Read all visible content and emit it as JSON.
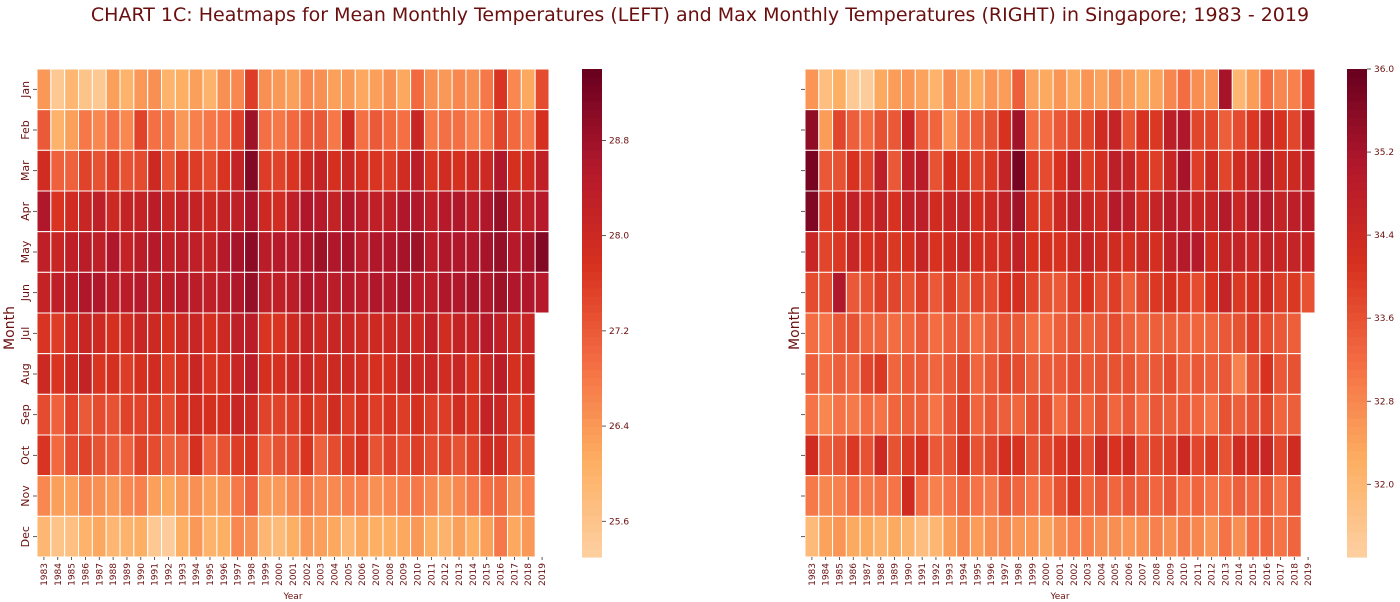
{
  "title": "CHART 1C: Heatmaps for Mean Monthly Temperatures (LEFT) and Max Monthly Temperatures (RIGHT) in Singapore; 1983 - 2019",
  "colors": {
    "scale": [
      "#fdd0a2",
      "#fdae61",
      "#f46d43",
      "#d7301f",
      "#b2182b",
      "#67001f"
    ],
    "grid": "#ffffff",
    "text": "#6a0f0f"
  },
  "chart_data": [
    {
      "type": "heatmap",
      "xlabel": "Year",
      "ylabel": "Month",
      "x": [
        "1983",
        "1984",
        "1985",
        "1986",
        "1987",
        "1988",
        "1989",
        "1990",
        "1991",
        "1992",
        "1993",
        "1994",
        "1995",
        "1996",
        "1997",
        "1998",
        "1999",
        "2000",
        "2001",
        "2002",
        "2003",
        "2004",
        "2005",
        "2006",
        "2007",
        "2008",
        "2009",
        "2010",
        "2011",
        "2012",
        "2013",
        "2014",
        "2015",
        "2016",
        "2017",
        "2018",
        "2019"
      ],
      "y": [
        "Jan",
        "Feb",
        "Mar",
        "Apr",
        "May",
        "Jun",
        "Jul",
        "Aug",
        "Sep",
        "Oct",
        "Nov",
        "Dec"
      ],
      "vmin": 25.3,
      "vmax": 29.4,
      "colorbar_ticks": [
        25.6,
        26.4,
        27.2,
        28.0,
        28.8
      ],
      "values": [
        [
          26.4,
          25.5,
          25.9,
          25.6,
          25.5,
          26.3,
          26.0,
          26.4,
          26.5,
          26.0,
          26.1,
          26.3,
          26.0,
          26.5,
          26.6,
          27.6,
          26.5,
          26.4,
          26.3,
          26.6,
          26.5,
          26.3,
          26.4,
          26.2,
          26.3,
          26.5,
          26.2,
          27.0,
          26.5,
          26.4,
          26.6,
          26.5,
          26.8,
          27.7,
          26.6,
          26.2,
          27.4
        ],
        [
          27.2,
          26.0,
          26.3,
          26.8,
          26.6,
          26.9,
          26.6,
          27.5,
          26.9,
          26.8,
          26.4,
          26.7,
          26.8,
          26.9,
          27.5,
          28.8,
          26.9,
          26.8,
          27.0,
          27.2,
          27.2,
          26.8,
          28.0,
          26.9,
          27.2,
          27.0,
          26.9,
          28.1,
          26.8,
          26.9,
          26.9,
          26.7,
          26.8,
          27.5,
          27.0,
          26.8,
          27.8
        ],
        [
          27.9,
          27.1,
          27.1,
          27.5,
          27.3,
          27.6,
          27.3,
          27.4,
          28.0,
          27.3,
          27.7,
          27.6,
          27.4,
          27.7,
          28.2,
          29.1,
          27.6,
          27.5,
          27.7,
          28.0,
          28.2,
          27.8,
          28.1,
          27.8,
          27.7,
          27.6,
          27.9,
          28.4,
          27.7,
          27.9,
          27.8,
          28.0,
          28.0,
          28.6,
          27.8,
          27.9,
          28.3
        ],
        [
          28.6,
          27.7,
          27.9,
          28.1,
          28.3,
          28.0,
          28.2,
          28.2,
          28.4,
          28.1,
          28.3,
          28.2,
          28.0,
          28.2,
          28.3,
          28.7,
          28.0,
          27.9,
          28.3,
          28.6,
          28.5,
          28.2,
          28.6,
          28.4,
          28.3,
          28.3,
          28.6,
          28.6,
          28.3,
          28.5,
          28.6,
          28.4,
          28.6,
          28.9,
          28.3,
          28.3,
          28.5
        ],
        [
          28.3,
          28.1,
          28.3,
          28.4,
          28.3,
          28.6,
          28.2,
          28.4,
          28.5,
          28.3,
          28.4,
          28.3,
          28.2,
          28.5,
          28.7,
          29.0,
          28.4,
          28.5,
          28.5,
          28.6,
          28.8,
          28.6,
          28.7,
          28.4,
          28.6,
          28.6,
          28.7,
          28.8,
          28.4,
          28.6,
          28.6,
          28.6,
          28.7,
          28.9,
          28.5,
          28.7,
          29.1
        ],
        [
          28.2,
          28.3,
          28.4,
          28.6,
          28.6,
          28.4,
          28.4,
          28.5,
          28.3,
          28.4,
          28.5,
          28.4,
          28.3,
          28.4,
          28.6,
          28.9,
          28.3,
          28.3,
          28.4,
          28.6,
          28.5,
          28.4,
          28.5,
          28.4,
          28.6,
          28.5,
          28.7,
          28.4,
          28.4,
          28.6,
          28.6,
          28.7,
          28.6,
          28.8,
          28.6,
          28.6,
          28.5
        ],
        [
          27.7,
          27.6,
          27.9,
          28.1,
          28.0,
          27.8,
          27.9,
          28.1,
          28.0,
          27.8,
          28.0,
          28.1,
          27.8,
          28.0,
          28.3,
          28.4,
          27.7,
          27.7,
          28.0,
          28.2,
          28.0,
          28.1,
          28.1,
          28.0,
          28.0,
          28.0,
          28.1,
          28.0,
          28.3,
          27.9,
          28.2,
          28.2,
          28.5,
          28.3,
          28.0,
          28.1,
          null
        ],
        [
          28.0,
          27.7,
          28.0,
          28.2,
          27.7,
          27.8,
          27.6,
          27.8,
          27.9,
          27.6,
          27.8,
          28.1,
          27.7,
          27.8,
          28.1,
          28.4,
          27.8,
          27.8,
          28.0,
          28.1,
          27.9,
          28.0,
          28.0,
          27.9,
          27.8,
          27.8,
          28.1,
          28.0,
          28.1,
          27.9,
          28.1,
          27.8,
          28.1,
          28.4,
          27.8,
          28.0,
          null
        ],
        [
          27.4,
          27.1,
          27.5,
          27.2,
          27.4,
          27.3,
          27.5,
          27.5,
          27.6,
          27.4,
          27.7,
          27.9,
          27.8,
          27.8,
          28.1,
          28.0,
          27.5,
          27.5,
          27.6,
          27.8,
          27.6,
          27.9,
          27.6,
          27.8,
          27.6,
          27.7,
          27.6,
          27.8,
          27.6,
          27.6,
          27.9,
          27.7,
          28.2,
          28.1,
          27.6,
          27.7,
          null
        ],
        [
          27.7,
          27.0,
          27.4,
          27.5,
          27.3,
          27.2,
          27.1,
          27.5,
          27.4,
          27.1,
          27.2,
          27.8,
          27.1,
          27.3,
          27.6,
          27.7,
          27.1,
          27.3,
          27.4,
          27.7,
          27.1,
          27.4,
          27.6,
          27.8,
          27.3,
          27.5,
          27.4,
          27.6,
          27.4,
          27.5,
          27.3,
          27.5,
          27.9,
          27.9,
          27.4,
          27.3,
          null
        ],
        [
          26.6,
          26.3,
          26.3,
          26.6,
          26.5,
          26.4,
          26.6,
          26.7,
          26.3,
          26.2,
          26.4,
          26.5,
          26.3,
          26.4,
          26.8,
          27.1,
          26.4,
          26.4,
          26.6,
          26.8,
          26.6,
          26.6,
          26.7,
          26.7,
          26.5,
          26.6,
          26.7,
          26.8,
          26.6,
          26.4,
          26.6,
          26.8,
          26.9,
          27.0,
          26.5,
          26.7,
          null
        ],
        [
          25.9,
          25.6,
          25.7,
          26.0,
          26.2,
          25.9,
          26.0,
          26.1,
          25.5,
          25.4,
          26.1,
          26.4,
          26.0,
          26.1,
          26.6,
          26.5,
          25.9,
          25.8,
          26.1,
          26.4,
          26.3,
          26.2,
          25.9,
          26.2,
          26.1,
          26.1,
          26.2,
          26.4,
          26.1,
          26.0,
          26.3,
          26.1,
          26.3,
          26.8,
          26.2,
          26.4,
          null
        ]
      ]
    },
    {
      "type": "heatmap",
      "xlabel": "Year",
      "ylabel": "Month",
      "x": [
        "1983",
        "1984",
        "1985",
        "1986",
        "1987",
        "1988",
        "1989",
        "1990",
        "1991",
        "1992",
        "1993",
        "1994",
        "1995",
        "1996",
        "1997",
        "1998",
        "1999",
        "2000",
        "2001",
        "2002",
        "2003",
        "2004",
        "2005",
        "2006",
        "2007",
        "2008",
        "2009",
        "2010",
        "2011",
        "2012",
        "2013",
        "2014",
        "2015",
        "2016",
        "2017",
        "2018",
        "2019"
      ],
      "y": [
        "Jan",
        "Feb",
        "Mar",
        "Apr",
        "May",
        "Jun",
        "Jul",
        "Aug",
        "Sep",
        "Oct",
        "Nov",
        "Dec"
      ],
      "vmin": 31.3,
      "vmax": 36.0,
      "colorbar_ticks": [
        32.0,
        32.8,
        33.6,
        34.4,
        35.2,
        36.0
      ],
      "values": [
        [
          32.6,
          31.8,
          32.2,
          31.5,
          31.4,
          32.3,
          32.5,
          32.6,
          32.4,
          32.1,
          32.7,
          32.4,
          32.3,
          32.6,
          32.5,
          33.4,
          32.4,
          32.3,
          32.6,
          32.3,
          32.6,
          32.4,
          32.7,
          32.5,
          32.3,
          32.4,
          32.8,
          33.2,
          32.7,
          32.6,
          35.2,
          32.0,
          32.5,
          33.2,
          32.8,
          32.9,
          33.6
        ],
        [
          35.5,
          32.5,
          33.8,
          33.4,
          33.2,
          33.6,
          33.5,
          34.5,
          33.5,
          33.3,
          32.6,
          33.2,
          33.4,
          33.6,
          34.1,
          35.3,
          33.2,
          33.2,
          33.5,
          33.7,
          33.8,
          34.3,
          34.6,
          33.6,
          34.1,
          34.0,
          34.8,
          35.1,
          33.8,
          33.8,
          33.4,
          33.7,
          34.0,
          34.6,
          34.1,
          33.8,
          34.8
        ],
        [
          35.8,
          33.5,
          33.6,
          34.1,
          33.8,
          34.8,
          33.5,
          34.7,
          34.9,
          33.6,
          34.2,
          34.0,
          33.8,
          34.0,
          34.6,
          35.8,
          33.9,
          33.7,
          34.1,
          34.8,
          33.9,
          34.2,
          34.8,
          34.6,
          34.1,
          33.9,
          34.5,
          35.2,
          33.9,
          34.4,
          33.8,
          34.3,
          34.6,
          35.0,
          34.3,
          34.4,
          34.8
        ],
        [
          35.7,
          33.9,
          34.2,
          34.7,
          34.3,
          34.7,
          34.1,
          34.7,
          34.8,
          34.3,
          34.5,
          34.6,
          34.2,
          34.4,
          34.7,
          35.3,
          34.0,
          33.9,
          34.4,
          34.8,
          34.5,
          34.3,
          35.0,
          34.8,
          34.3,
          34.6,
          34.9,
          34.9,
          34.5,
          34.6,
          35.0,
          34.5,
          35.0,
          35.0,
          34.6,
          34.8,
          34.9
        ],
        [
          34.5,
          33.8,
          34.0,
          34.5,
          34.1,
          34.3,
          34.0,
          34.2,
          34.6,
          34.1,
          34.3,
          34.5,
          34.2,
          34.2,
          34.3,
          34.7,
          34.1,
          34.2,
          34.1,
          34.4,
          34.6,
          34.3,
          34.3,
          34.2,
          34.4,
          34.2,
          34.7,
          35.0,
          35.0,
          34.3,
          34.6,
          34.6,
          34.5,
          34.7,
          34.5,
          34.6,
          34.6
        ],
        [
          33.7,
          33.6,
          35.1,
          33.5,
          33.6,
          33.9,
          33.8,
          33.6,
          33.9,
          33.5,
          33.9,
          33.6,
          33.8,
          33.7,
          34.1,
          34.2,
          33.8,
          33.6,
          33.5,
          33.9,
          34.1,
          33.7,
          33.9,
          33.4,
          33.8,
          34.0,
          34.2,
          34.0,
          33.7,
          34.1,
          34.6,
          34.0,
          34.2,
          34.4,
          33.9,
          34.0,
          33.6
        ],
        [
          33.2,
          33.1,
          33.5,
          33.6,
          33.3,
          33.3,
          33.2,
          33.3,
          33.5,
          33.2,
          33.4,
          33.5,
          33.2,
          33.4,
          33.6,
          33.5,
          33.2,
          33.2,
          33.4,
          33.6,
          33.4,
          33.5,
          33.7,
          33.4,
          33.3,
          33.4,
          33.4,
          33.4,
          33.3,
          33.3,
          33.5,
          33.6,
          33.9,
          33.7,
          33.5,
          33.4,
          null
        ],
        [
          33.4,
          33.2,
          33.4,
          33.3,
          33.8,
          34.0,
          33.3,
          33.5,
          33.5,
          33.3,
          33.5,
          33.8,
          33.3,
          33.5,
          33.8,
          33.7,
          33.4,
          33.5,
          33.5,
          33.7,
          33.5,
          33.6,
          33.6,
          33.6,
          33.4,
          33.5,
          33.7,
          33.4,
          33.5,
          33.4,
          33.5,
          32.9,
          33.6,
          34.1,
          33.5,
          33.6,
          null
        ],
        [
          33.1,
          32.8,
          33.1,
          33.0,
          33.2,
          33.1,
          33.3,
          33.4,
          33.4,
          33.1,
          33.5,
          33.9,
          33.3,
          33.5,
          33.4,
          33.3,
          33.6,
          33.7,
          33.2,
          33.6,
          33.3,
          33.6,
          33.3,
          33.5,
          33.2,
          33.5,
          33.4,
          33.5,
          33.3,
          33.1,
          33.6,
          33.4,
          33.6,
          33.8,
          33.3,
          33.4,
          null
        ],
        [
          34.3,
          33.4,
          33.6,
          34.0,
          33.6,
          34.4,
          33.6,
          34.0,
          34.2,
          33.5,
          33.6,
          34.2,
          33.6,
          33.8,
          34.2,
          34.1,
          33.6,
          33.8,
          34.0,
          34.3,
          33.7,
          34.4,
          34.1,
          34.3,
          33.7,
          33.8,
          33.9,
          34.4,
          33.8,
          34.0,
          33.6,
          34.3,
          34.3,
          34.5,
          33.8,
          34.3,
          null
        ],
        [
          33.0,
          32.8,
          32.9,
          33.2,
          33.0,
          33.1,
          33.1,
          34.3,
          33.2,
          32.9,
          33.1,
          33.3,
          33.1,
          33.0,
          33.5,
          33.3,
          33.1,
          33.2,
          33.6,
          34.0,
          33.3,
          33.5,
          33.3,
          33.5,
          33.4,
          33.3,
          33.5,
          33.2,
          33.3,
          33.1,
          33.2,
          33.4,
          33.3,
          33.5,
          33.1,
          33.5,
          null
        ],
        [
          31.9,
          32.4,
          32.6,
          32.3,
          32.3,
          32.1,
          32.3,
          32.1,
          31.8,
          32.0,
          32.5,
          32.8,
          32.5,
          32.7,
          32.8,
          32.6,
          32.6,
          32.4,
          32.7,
          32.9,
          32.9,
          32.7,
          32.7,
          32.6,
          32.7,
          32.9,
          32.7,
          33.0,
          32.8,
          32.6,
          33.1,
          32.7,
          33.2,
          33.3,
          33.1,
          33.3,
          null
        ]
      ]
    }
  ]
}
